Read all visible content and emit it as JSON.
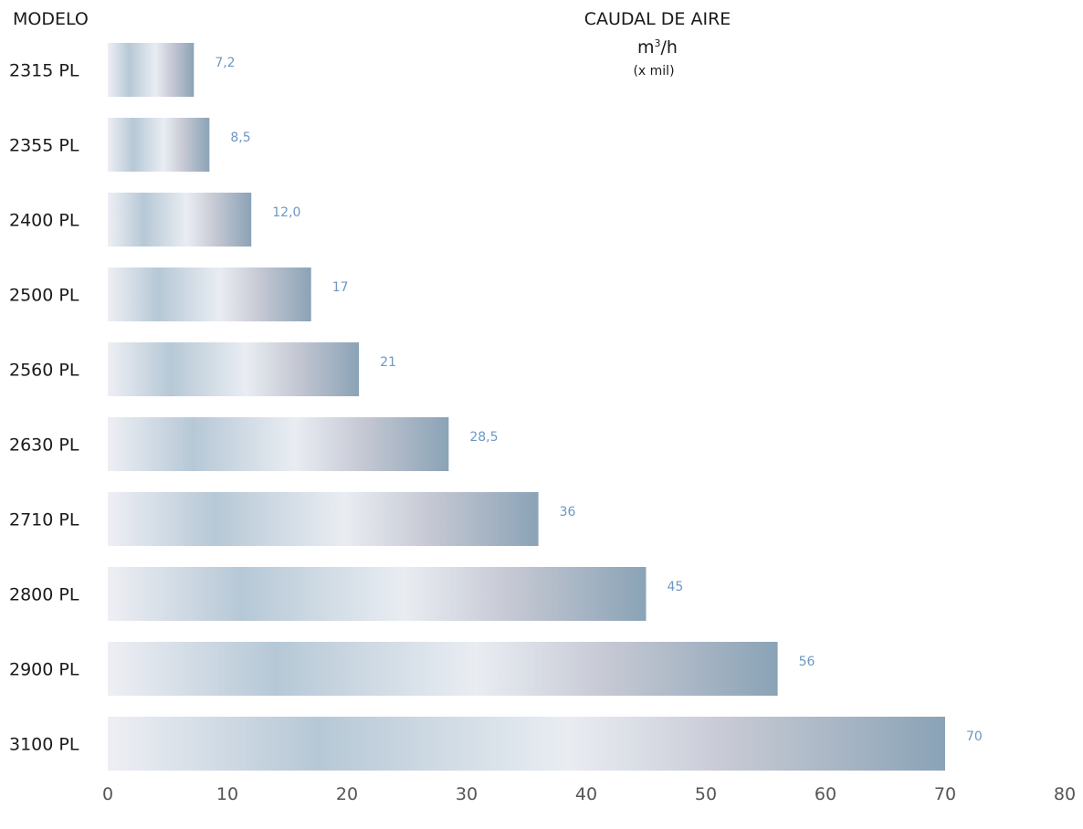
{
  "chart_data": {
    "type": "bar",
    "orientation": "horizontal",
    "category_axis_title": "MODELO",
    "title": "CAUDAL DE AIRE",
    "unit_main": "m",
    "unit_sup": "3",
    "unit_tail": "/h",
    "unit_note": "(x mil)",
    "categories": [
      "2315 PL",
      "2355 PL",
      "2400 PL",
      "2500 PL",
      "2560 PL",
      "2630 PL",
      "2710 PL",
      "2800 PL",
      "2900 PL",
      "3100 PL"
    ],
    "values": [
      7.2,
      8.5,
      12.0,
      17,
      21,
      28.5,
      36,
      45,
      56,
      70
    ],
    "value_labels": [
      "7,2",
      "8,5",
      "12,0",
      "17",
      "21",
      "28,5",
      "36",
      "45",
      "56",
      "70"
    ],
    "xlim": [
      0,
      80
    ],
    "x_ticks": [
      0,
      10,
      20,
      30,
      40,
      50,
      60,
      70,
      80
    ],
    "x_tick_labels": [
      "0",
      "10",
      "20",
      "30",
      "40",
      "50",
      "60",
      "70",
      "80"
    ],
    "grid": false,
    "legend": "none",
    "colors": {
      "value_label": "#6d97c2",
      "category_label": "#1a1a1a",
      "axis_label": "#555555",
      "bar_gradient": [
        "#eeeff4",
        "#b6c8d6",
        "#e9edf2",
        "#c5c8d3",
        "#8aa3b6"
      ]
    }
  }
}
